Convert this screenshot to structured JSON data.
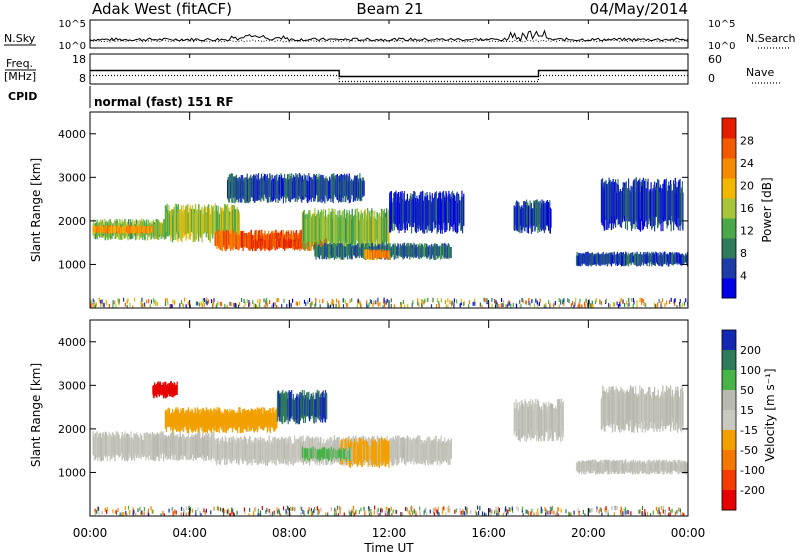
{
  "header": {
    "station": "Adak West (fitACF)",
    "beam": "Beam 21",
    "date": "04/May/2014"
  },
  "noise_panel": {
    "left_label": "N.Sky",
    "left_ticks": [
      "10^5",
      "10^0"
    ],
    "right_label": "N.Search",
    "right_ticks": [
      "10^5",
      "10^0"
    ]
  },
  "freq_panel": {
    "left_label_line1": "Freq.",
    "left_label_line2": "[MHz]",
    "left_ticks": [
      "18",
      "8"
    ],
    "right_label": "Nave",
    "right_ticks": [
      "60",
      "0"
    ]
  },
  "cpid_panel": {
    "label": "CPID",
    "mode": "normal (fast) 151 RF"
  },
  "power_panel": {
    "ylabel": "Slant Range [km]",
    "yticks": [
      "1000",
      "2000",
      "3000",
      "4000"
    ],
    "colorbar_label": "Power [dB]",
    "colorbar_ticks": [
      "4",
      "8",
      "12",
      "16",
      "20",
      "24",
      "28"
    ],
    "colorbar_colors": [
      "#0000e6",
      "#1e3ca8",
      "#2e7a5a",
      "#4aa84a",
      "#a8c43a",
      "#f2b800",
      "#f48a00",
      "#f25a00",
      "#e61e00"
    ]
  },
  "velocity_panel": {
    "ylabel": "Slant Range [km]",
    "yticks": [
      "1000",
      "2000",
      "3000",
      "4000"
    ],
    "colorbar_label": "Velocity [m s⁻¹]",
    "colorbar_ticks": [
      "200",
      "100",
      "50",
      "15",
      "-15",
      "-50",
      "-100",
      "-200"
    ],
    "colorbar_colors": [
      "#1428b4",
      "#2e7a5a",
      "#46b446",
      "#b9b9b0",
      "#c9c9c0",
      "#f2a000",
      "#f47800",
      "#f43c00",
      "#e60000"
    ]
  },
  "xaxis": {
    "ticks": [
      "00:00",
      "04:00",
      "08:00",
      "12:00",
      "16:00",
      "20:00",
      "00:00"
    ],
    "label": "Time UT"
  },
  "chart_data": {
    "type": "heatmap",
    "x_range_hours": [
      0,
      24
    ],
    "y_range_km": [
      0,
      4500
    ],
    "frequency_mhz": [
      {
        "start_h": 0,
        "end_h": 10,
        "value": 12.5
      },
      {
        "start_h": 10,
        "end_h": 18,
        "value": 10.5
      },
      {
        "start_h": 18,
        "end_h": 24,
        "value": 12.5
      }
    ],
    "power_regions": [
      {
        "h0": 0.1,
        "h1": 3.0,
        "r0": 1550,
        "r1": 2050,
        "db": 14
      },
      {
        "h0": 0.1,
        "h1": 2.5,
        "r0": 1700,
        "r1": 1900,
        "db": 22
      },
      {
        "h0": 3.0,
        "h1": 6.0,
        "r0": 1500,
        "r1": 2400,
        "db": 16
      },
      {
        "h0": 5.0,
        "h1": 9.5,
        "r0": 1300,
        "r1": 1800,
        "db": 26
      },
      {
        "h0": 6.5,
        "h1": 8.5,
        "r0": 1350,
        "r1": 1600,
        "db": 28
      },
      {
        "h0": 8.5,
        "h1": 12.0,
        "r0": 1300,
        "r1": 2300,
        "db": 14
      },
      {
        "h0": 9.0,
        "h1": 14.5,
        "r0": 1100,
        "r1": 1500,
        "db": 8
      },
      {
        "h0": 11.0,
        "h1": 12.0,
        "r0": 1100,
        "r1": 1350,
        "db": 24
      },
      {
        "h0": 5.5,
        "h1": 11.0,
        "r0": 2400,
        "r1": 3100,
        "db": 6
      },
      {
        "h0": 12.0,
        "h1": 15.0,
        "r0": 1700,
        "r1": 2700,
        "db": 4
      },
      {
        "h0": 17.0,
        "h1": 18.5,
        "r0": 1700,
        "r1": 2500,
        "db": 5
      },
      {
        "h0": 19.5,
        "h1": 24.0,
        "r0": 950,
        "r1": 1300,
        "db": 6
      },
      {
        "h0": 20.5,
        "h1": 23.8,
        "r0": 1750,
        "r1": 3000,
        "db": 5
      }
    ],
    "velocity_regions": [
      {
        "h0": 0.1,
        "h1": 5.0,
        "r0": 1250,
        "r1": 1950,
        "v": 0
      },
      {
        "h0": 5.0,
        "h1": 14.5,
        "r0": 1150,
        "r1": 1850,
        "v": -5
      },
      {
        "h0": 3.0,
        "h1": 7.5,
        "r0": 1900,
        "r1": 2500,
        "v": -60
      },
      {
        "h0": 7.5,
        "h1": 9.5,
        "r0": 2100,
        "r1": 2900,
        "v": 150
      },
      {
        "h0": 10.0,
        "h1": 12.0,
        "r0": 1100,
        "r1": 1800,
        "v": -40
      },
      {
        "h0": 8.5,
        "h1": 10.5,
        "r0": 1250,
        "r1": 1600,
        "v": 40
      },
      {
        "h0": 2.5,
        "h1": 3.5,
        "r0": 2700,
        "r1": 3100,
        "v": -180
      },
      {
        "h0": 17.0,
        "h1": 19.0,
        "r0": 1700,
        "r1": 2700,
        "v": 0
      },
      {
        "h0": 19.5,
        "h1": 24.0,
        "r0": 950,
        "r1": 1300,
        "v": 0
      },
      {
        "h0": 20.5,
        "h1": 23.8,
        "r0": 1900,
        "r1": 3000,
        "v": 5
      }
    ]
  }
}
